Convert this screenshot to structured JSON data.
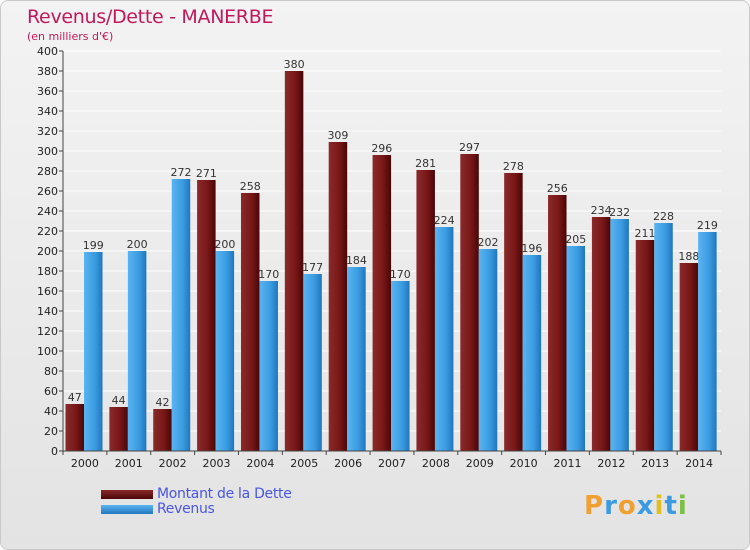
{
  "title": "Revenus/Dette - MANERBE",
  "subtitle": "(en milliers d'€)",
  "colors": {
    "dette": "#7a1a1a",
    "revenus": "#3a9be0",
    "title": "#c2185b",
    "legend_text": "#4a56e2"
  },
  "legend": [
    {
      "label": "Montant de la Dette",
      "color": "#6b1010"
    },
    {
      "label": "Revenus",
      "color": "#3f9fe6"
    }
  ],
  "logo": {
    "text": "Proxiti",
    "letters": [
      "P",
      "r",
      "o",
      "x",
      "i",
      "t",
      "i"
    ],
    "colors": [
      "#f0a030",
      "#3a9be0",
      "#f0a030",
      "#3a9be0",
      "#e0c020",
      "#3a9be0",
      "#7ac043"
    ]
  },
  "chart_data": {
    "type": "bar",
    "categories": [
      "2000",
      "2001",
      "2002",
      "2003",
      "2004",
      "2005",
      "2006",
      "2007",
      "2008",
      "2009",
      "2010",
      "2011",
      "2012",
      "2013",
      "2014"
    ],
    "series": [
      {
        "name": "Montant de la Dette",
        "values": [
          47,
          44,
          42,
          271,
          258,
          380,
          309,
          296,
          281,
          297,
          278,
          256,
          234,
          211,
          188
        ]
      },
      {
        "name": "Revenus",
        "values": [
          199,
          200,
          272,
          200,
          170,
          177,
          184,
          170,
          224,
          202,
          196,
          205,
          232,
          228,
          219
        ]
      }
    ],
    "title": "Revenus/Dette - MANERBE",
    "ylabel": "(en milliers d'€)",
    "ylim": [
      0,
      400
    ],
    "ytick_step": 20,
    "grid": true,
    "legend_position": "bottom-left"
  }
}
